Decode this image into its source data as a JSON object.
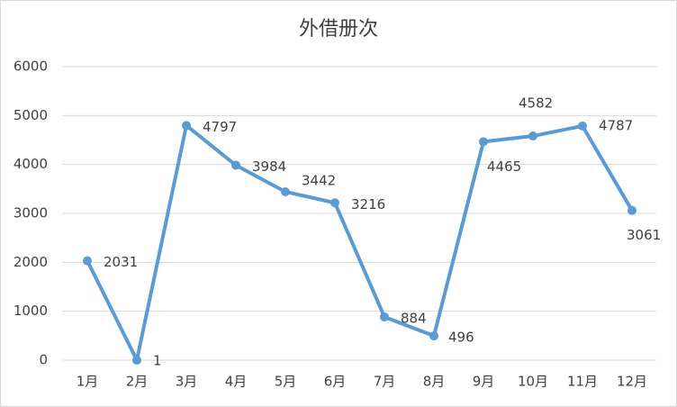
{
  "chart_data": {
    "type": "line",
    "title": "外借册次",
    "categories": [
      "1月",
      "2月",
      "3月",
      "4月",
      "5月",
      "6月",
      "7月",
      "8月",
      "9月",
      "10月",
      "11月",
      "12月"
    ],
    "values": [
      2031,
      1,
      4797,
      3984,
      3442,
      3216,
      884,
      496,
      4465,
      4582,
      4787,
      3061
    ],
    "color": "#5b9bd5",
    "ylim": [
      0,
      6000
    ],
    "yticks": [
      0,
      1000,
      2000,
      3000,
      4000,
      5000,
      6000
    ],
    "grid": true
  }
}
